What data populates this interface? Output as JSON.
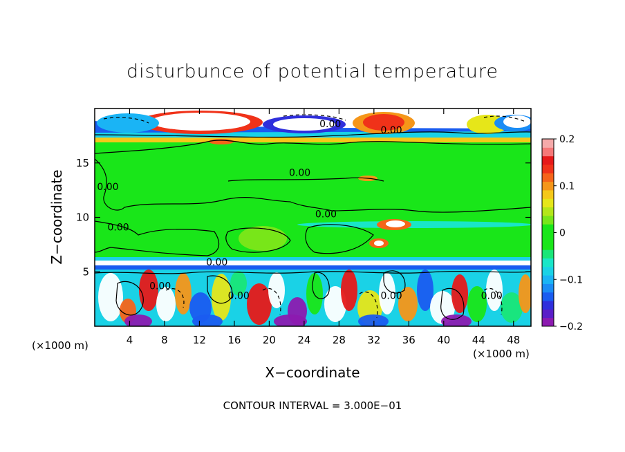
{
  "chart_data": {
    "type": "heatmap",
    "title": "disturbunce of potential temperature",
    "xlabel": "X−coordinate",
    "ylabel": "Z−coordinate",
    "x_unit_left": "(×1000 m)",
    "x_unit_right": "(×1000 m)",
    "x_ticks": [
      "4",
      "8",
      "12",
      "16",
      "20",
      "24",
      "28",
      "32",
      "36",
      "40",
      "44",
      "48"
    ],
    "x_tick_values": [
      4,
      8,
      12,
      16,
      20,
      24,
      28,
      32,
      36,
      40,
      44,
      48
    ],
    "y_ticks": [
      "5",
      "10",
      "15"
    ],
    "y_tick_values": [
      5,
      10,
      15
    ],
    "xlim": [
      0,
      50
    ],
    "ylim": [
      0,
      20
    ],
    "footnote": "CONTOUR INTERVAL = 3.000E−01",
    "contour_labels": [
      {
        "text": "0.00",
        "x": 27.0,
        "y": 18.3
      },
      {
        "text": "0.00",
        "x": 34.0,
        "y": 17.7
      },
      {
        "text": "0.00",
        "x": 23.5,
        "y": 13.8
      },
      {
        "text": "0.00",
        "x": 1.5,
        "y": 12.5
      },
      {
        "text": "0.00",
        "x": 26.5,
        "y": 10.0
      },
      {
        "text": "0.00",
        "x": 2.7,
        "y": 8.8
      },
      {
        "text": "0.00",
        "x": 14.0,
        "y": 5.6
      },
      {
        "text": "0.00",
        "x": 7.5,
        "y": 3.4
      },
      {
        "text": "0.00",
        "x": 16.5,
        "y": 2.5
      },
      {
        "text": "0.00",
        "x": 34.0,
        "y": 2.5
      },
      {
        "text": "0.00",
        "x": 45.5,
        "y": 2.5
      }
    ],
    "colorbar": {
      "range": [
        -0.2,
        0.2
      ],
      "tick_labels": [
        "0.2",
        "0.1",
        "0",
        "−0.1",
        "−0.2"
      ],
      "tick_values": [
        0.2,
        0.1,
        0,
        -0.1,
        -0.2
      ],
      "colors": [
        "#8c1ab0",
        "#5a1ec8",
        "#2f2fdc",
        "#1a5cf0",
        "#1a8cf5",
        "#1ab4f5",
        "#1ad2e6",
        "#19e6c8",
        "#19e678",
        "#19e619",
        "#19e619",
        "#19e619",
        "#78e619",
        "#b4e619",
        "#e6e619",
        "#f5c819",
        "#f59619",
        "#f56419",
        "#f03219",
        "#e61919",
        "#f57878",
        "#f5aaaa"
      ]
    }
  }
}
